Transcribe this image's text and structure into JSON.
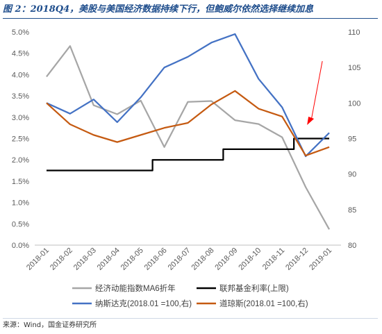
{
  "figure": {
    "title": "图 2：2018Q4，美股与美国经济数据持续下行，但鲍威尔依然选择继续加息",
    "source": "来源：Wind，国金证券研究所"
  },
  "chart_data": {
    "type": "line",
    "categories": [
      "2018-01",
      "2018-02",
      "2018-03",
      "2018-04",
      "2018-05",
      "2018-06",
      "2018-07",
      "2018-08",
      "2018-09",
      "2018-10",
      "2018-11",
      "2018-12",
      "2019-01"
    ],
    "yleft": {
      "ticks": [
        "0.0%",
        "0.5%",
        "1.0%",
        "1.5%",
        "2.0%",
        "2.5%",
        "3.0%",
        "3.5%",
        "4.0%",
        "4.5%",
        "5.0%"
      ],
      "lim": [
        0,
        5.0
      ]
    },
    "yright": {
      "ticks": [
        "80",
        "85",
        "90",
        "95",
        "100",
        "105",
        "110"
      ],
      "lim": [
        80,
        110
      ]
    },
    "grid": false,
    "legend_position": "bottom",
    "series": [
      {
        "name": "经济动能指数MA6折年",
        "axis": "left",
        "color": "#a6a6a6",
        "values": [
          3.95,
          4.67,
          3.28,
          3.07,
          3.39,
          2.3,
          3.36,
          3.38,
          2.93,
          2.84,
          2.53,
          1.36,
          0.37
        ]
      },
      {
        "name": "联邦基金利率(上限)",
        "axis": "left",
        "color": "#000000",
        "step": true,
        "values": [
          1.75,
          1.75,
          1.75,
          1.75,
          1.75,
          2.0,
          2.0,
          2.0,
          2.25,
          2.25,
          2.25,
          2.5,
          2.5
        ]
      },
      {
        "name": "纳斯达克(2018.01 =100,右)",
        "axis": "right",
        "color": "#4472c4",
        "values": [
          100,
          98.5,
          100.5,
          97.3,
          100.8,
          105.0,
          106.5,
          108.5,
          109.7,
          103.4,
          99.4,
          92.5,
          95.8
        ]
      },
      {
        "name": "道琼斯(2018.01 =100,右)",
        "axis": "right",
        "color": "#c55a11",
        "values": [
          100,
          97.0,
          95.5,
          94.5,
          95.5,
          96.5,
          97.2,
          99.8,
          101.7,
          99.2,
          98.1,
          92.6,
          93.8
        ]
      }
    ],
    "annotations": [
      {
        "type": "arrow",
        "color": "#ff0000",
        "target_category": "2018-12"
      }
    ]
  }
}
